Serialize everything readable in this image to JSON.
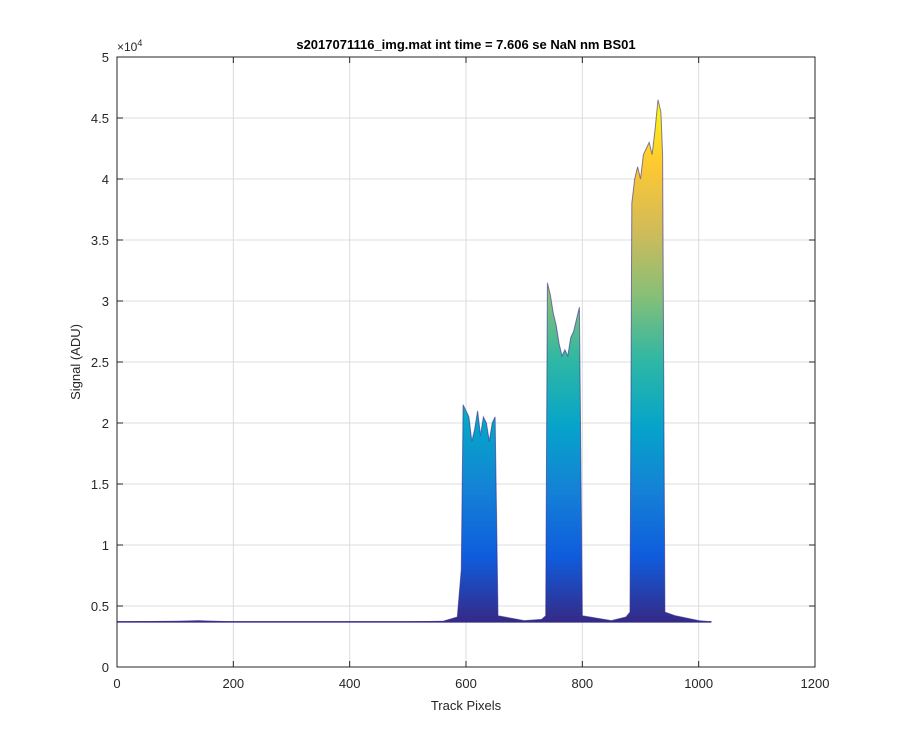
{
  "chart_data": {
    "type": "area",
    "title": "s2017071116_img.mat int time = 7.606 se  NaN nm BS01",
    "xlabel": "Track Pixels",
    "ylabel": "Signal (ADU)",
    "xlim": [
      0,
      1200
    ],
    "ylim": [
      0,
      50000
    ],
    "x_ticks": [
      0,
      200,
      400,
      600,
      800,
      1000,
      1200
    ],
    "y_ticks": [
      0,
      5000,
      10000,
      15000,
      20000,
      25000,
      30000,
      35000,
      40000,
      45000,
      50000
    ],
    "y_tick_labels": [
      "0",
      "0.5",
      "1",
      "1.5",
      "2",
      "2.5",
      "3",
      "3.5",
      "4",
      "4.5",
      "5"
    ],
    "x_tick_labels": [
      "0",
      "200",
      "400",
      "600",
      "800",
      "1000",
      "1200"
    ],
    "y_exponent_base": "×10",
    "y_exponent_power": "4",
    "grid": true,
    "colormap": [
      "#352a87",
      "#0f5cdd",
      "#1481d6",
      "#06a4ca",
      "#2eb7a4",
      "#87bf77",
      "#d1bb59",
      "#fec832",
      "#f9fb0e"
    ],
    "baseline": 3700,
    "series": [
      {
        "x": [
          0,
          100,
          140,
          200,
          300,
          400,
          500,
          560,
          585,
          592,
          595,
          600,
          605,
          610,
          615,
          620,
          625,
          630,
          635,
          640,
          645,
          650,
          655,
          700,
          730,
          737,
          740,
          745,
          750,
          755,
          760,
          765,
          770,
          775,
          780,
          785,
          790,
          795,
          800,
          850,
          875,
          882,
          885,
          890,
          895,
          900,
          905,
          910,
          915,
          920,
          925,
          930,
          935,
          938,
          942,
          960,
          1000,
          1022
        ],
        "y": [
          3700,
          3750,
          3800,
          3700,
          3700,
          3700,
          3700,
          3750,
          4100,
          8000,
          21500,
          21000,
          20500,
          18500,
          19500,
          21000,
          19000,
          20500,
          20000,
          18500,
          20000,
          20500,
          4200,
          3800,
          3900,
          4200,
          31500,
          30500,
          29000,
          28000,
          26500,
          25500,
          26000,
          25500,
          27000,
          27500,
          28500,
          29500,
          4200,
          3800,
          4100,
          4500,
          38000,
          40000,
          41000,
          40000,
          42000,
          42500,
          43000,
          42000,
          44000,
          46500,
          45500,
          42000,
          4500,
          4200,
          3800,
          3700
        ]
      }
    ]
  }
}
